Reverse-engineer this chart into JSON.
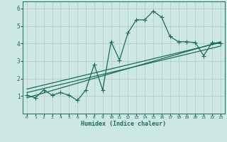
{
  "xlabel": "Humidex (Indice chaleur)",
  "xlim": [
    -0.5,
    23.5
  ],
  "ylim": [
    0,
    6.4
  ],
  "xticks": [
    0,
    1,
    2,
    3,
    4,
    5,
    6,
    7,
    8,
    9,
    10,
    11,
    12,
    13,
    14,
    15,
    16,
    17,
    18,
    19,
    20,
    21,
    22,
    23
  ],
  "yticks": [
    1,
    2,
    3,
    4,
    5,
    6
  ],
  "bg_color": "#cde8e4",
  "grid_color": "#b0c8c4",
  "line_color": "#1a6b5a",
  "line1_x": [
    0,
    1,
    2,
    3,
    4,
    5,
    6,
    7,
    8,
    9,
    10,
    11,
    12,
    13,
    14,
    15,
    16,
    17,
    18,
    19,
    20,
    21,
    22,
    23
  ],
  "line1_y": [
    1.05,
    0.9,
    1.35,
    1.05,
    1.2,
    1.05,
    0.75,
    1.35,
    2.8,
    1.35,
    4.1,
    3.05,
    4.6,
    5.35,
    5.35,
    5.85,
    5.5,
    4.4,
    4.1,
    4.1,
    4.05,
    3.3,
    4.05,
    4.0
  ],
  "line2_x": [
    0,
    23
  ],
  "line2_y": [
    0.9,
    4.1
  ],
  "line3_x": [
    0,
    23
  ],
  "line3_y": [
    1.2,
    3.85
  ],
  "line4_x": [
    0,
    23
  ],
  "line4_y": [
    1.4,
    4.05
  ],
  "marker_size": 2.5,
  "line_width": 0.9
}
